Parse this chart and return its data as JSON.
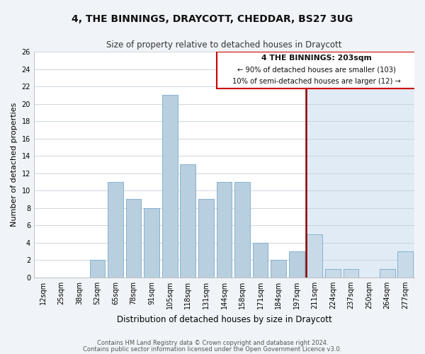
{
  "title": "4, THE BINNINGS, DRAYCOTT, CHEDDAR, BS27 3UG",
  "subtitle": "Size of property relative to detached houses in Draycott",
  "xlabel": "Distribution of detached houses by size in Draycott",
  "ylabel": "Number of detached properties",
  "bar_labels": [
    "12sqm",
    "25sqm",
    "38sqm",
    "52sqm",
    "65sqm",
    "78sqm",
    "91sqm",
    "105sqm",
    "118sqm",
    "131sqm",
    "144sqm",
    "158sqm",
    "171sqm",
    "184sqm",
    "197sqm",
    "211sqm",
    "224sqm",
    "237sqm",
    "250sqm",
    "264sqm",
    "277sqm"
  ],
  "bar_values": [
    0,
    0,
    0,
    2,
    11,
    9,
    8,
    21,
    13,
    9,
    11,
    11,
    4,
    2,
    3,
    5,
    1,
    1,
    0,
    1,
    3
  ],
  "bar_color_left": "#b8cfe0",
  "bar_color_right": "#c8dae8",
  "bar_edge_color": "#7aaac8",
  "vline_color": "#8b0000",
  "vline_x_index": 14,
  "annotation_text_line1": "4 THE BINNINGS: 203sqm",
  "annotation_text_line2": "← 90% of detached houses are smaller (103)",
  "annotation_text_line3": "10% of semi-detached houses are larger (12) →",
  "annotation_box_edge": "#cc0000",
  "ylim": [
    0,
    26
  ],
  "yticks": [
    0,
    2,
    4,
    6,
    8,
    10,
    12,
    14,
    16,
    18,
    20,
    22,
    24,
    26
  ],
  "footer_line1": "Contains HM Land Registry data © Crown copyright and database right 2024.",
  "footer_line2": "Contains public sector information licensed under the Open Government Licence v3.0.",
  "fig_bg": "#f0f4f8",
  "plot_bg_left": "#ffffff",
  "plot_bg_right": "#e0ebf5"
}
